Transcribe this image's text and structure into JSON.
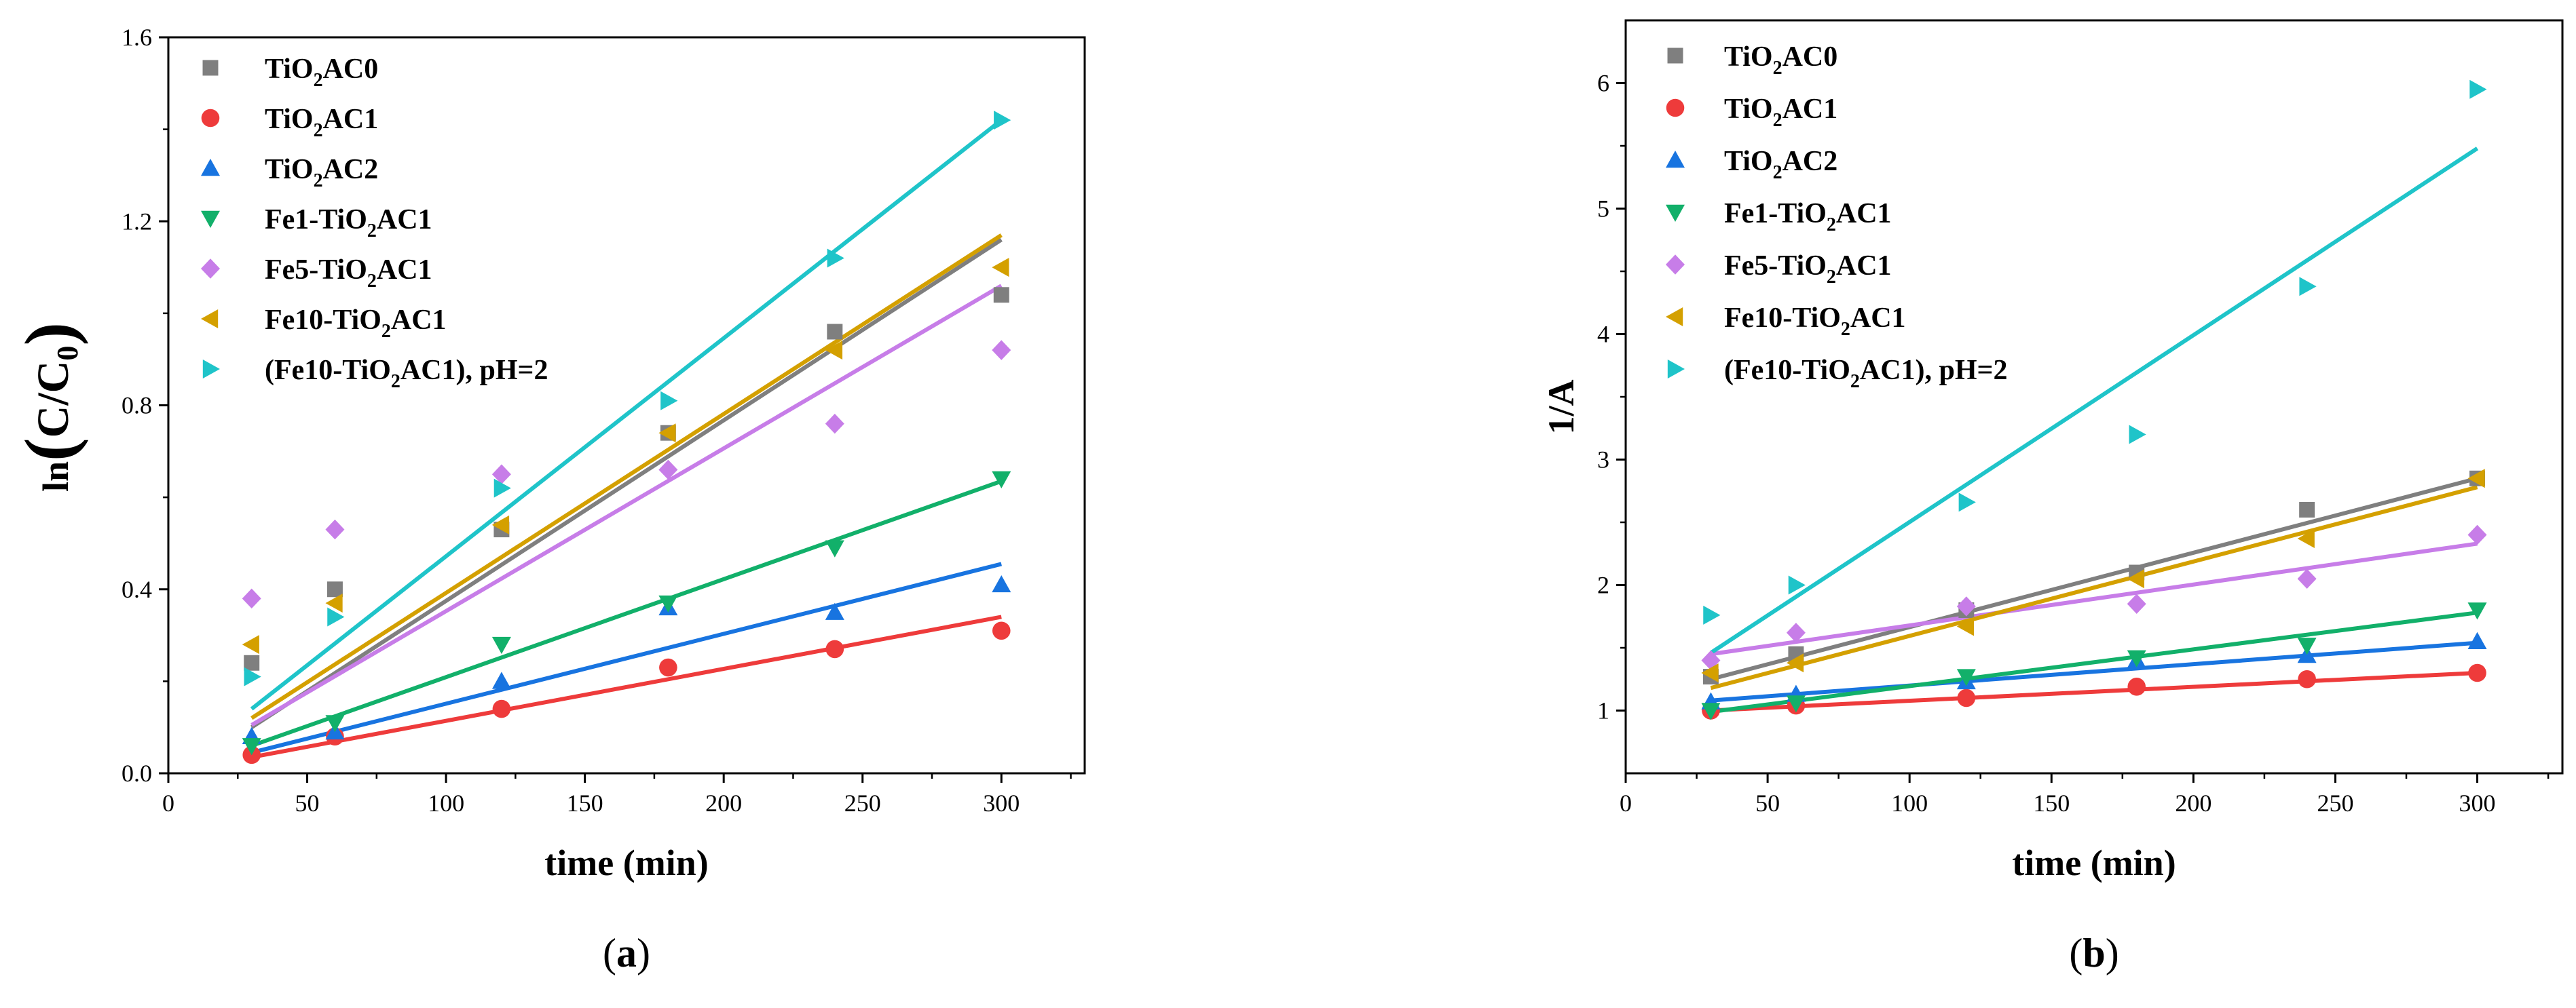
{
  "colors": {
    "TiO2AC0": "#7f7f7f",
    "TiO2AC1": "#ee3b3b",
    "TiO2AC2": "#1874e0",
    "Fe1-TiO2AC1": "#12b06a",
    "Fe5-TiO2AC1": "#c77de8",
    "Fe10-TiO2AC1": "#d4a000",
    "Fe10pH2": "#1fc4c9"
  },
  "chart_data": [
    {
      "id": "a",
      "type": "scatter",
      "panel_label_open": "(",
      "panel_label_letter": "a",
      "panel_label_close": ")",
      "xlabel": "time (min)",
      "ylabel_prefix": "ln",
      "ylabel_inner": "C/C",
      "ylabel_sub": "0",
      "xlim": [
        0,
        330
      ],
      "ylim": [
        0,
        1.6
      ],
      "xticks": [
        0,
        50,
        100,
        150,
        200,
        250,
        300
      ],
      "yticks": [
        0.0,
        0.4,
        0.8,
        1.2,
        1.6
      ],
      "ytick_labels": [
        "0.0",
        "0.4",
        "0.8",
        "1.2",
        "1.6"
      ],
      "x": [
        30,
        60,
        120,
        180,
        240,
        300
      ],
      "series": [
        {
          "key": "TiO2AC0",
          "name": "TiO2AC0",
          "label_parts": [
            "TiO",
            "2",
            "AC0"
          ],
          "marker": "square",
          "values": [
            0.24,
            0.4,
            0.53,
            0.74,
            0.96,
            1.04
          ],
          "fit": [
            0.1,
            1.16
          ]
        },
        {
          "key": "TiO2AC1",
          "name": "TiO2AC1",
          "label_parts": [
            "TiO",
            "2",
            "AC1"
          ],
          "marker": "circle",
          "values": [
            0.04,
            0.08,
            0.14,
            0.23,
            0.27,
            0.31
          ],
          "fit": [
            0.035,
            0.34
          ]
        },
        {
          "key": "TiO2AC2",
          "name": "TiO2AC2",
          "label_parts": [
            "TiO",
            "2",
            "AC2"
          ],
          "marker": "triangle-up",
          "values": [
            0.08,
            0.09,
            0.2,
            0.36,
            0.35,
            0.41
          ],
          "fit": [
            0.045,
            0.455
          ]
        },
        {
          "key": "Fe1-TiO2AC1",
          "name": "Fe1-TiO2AC1",
          "label_parts": [
            "Fe1-TiO",
            "2",
            "AC1"
          ],
          "marker": "triangle-down",
          "values": [
            0.06,
            0.11,
            0.28,
            0.37,
            0.49,
            0.64
          ],
          "fit": [
            0.06,
            0.635
          ]
        },
        {
          "key": "Fe5-TiO2AC1",
          "name": "Fe5-TiO2AC1",
          "label_parts": [
            "Fe5-TiO",
            "2",
            "AC1"
          ],
          "marker": "diamond",
          "values": [
            0.38,
            0.53,
            0.65,
            0.66,
            0.76,
            0.92
          ],
          "fit": [
            0.105,
            1.06
          ]
        },
        {
          "key": "Fe10-TiO2AC1",
          "name": "Fe10-TiO2AC1",
          "label_parts": [
            "Fe10-TiO",
            "2",
            "AC1"
          ],
          "marker": "triangle-left",
          "values": [
            0.28,
            0.37,
            0.54,
            0.74,
            0.92,
            1.1
          ],
          "fit": [
            0.12,
            1.17
          ]
        },
        {
          "key": "Fe10pH2",
          "name": "(Fe10-TiO2AC1), pH=2",
          "label_parts": [
            "(Fe10-TiO",
            "2",
            "AC1), pH=2"
          ],
          "marker": "triangle-right",
          "values": [
            0.21,
            0.34,
            0.62,
            0.81,
            1.12,
            1.42
          ],
          "fit": [
            0.14,
            1.42
          ]
        }
      ]
    },
    {
      "id": "b",
      "type": "scatter",
      "panel_label_open": "(",
      "panel_label_letter": "b",
      "panel_label_close": ")",
      "xlabel": "time (min)",
      "ylabel": "1/A",
      "xlim": [
        0,
        330
      ],
      "ylim": [
        0.5,
        6.5
      ],
      "xticks": [
        0,
        50,
        100,
        150,
        200,
        250,
        300
      ],
      "yticks": [
        1,
        2,
        3,
        4,
        5,
        6
      ],
      "ytick_labels": [
        "1",
        "2",
        "3",
        "4",
        "5",
        "6"
      ],
      "x": [
        30,
        60,
        120,
        180,
        240,
        300
      ],
      "series": [
        {
          "key": "TiO2AC0",
          "name": "TiO2AC0",
          "label_parts": [
            "TiO",
            "2",
            "AC0"
          ],
          "marker": "square",
          "values": [
            1.27,
            1.45,
            1.8,
            2.1,
            2.6,
            2.85
          ],
          "fit": [
            1.25,
            2.85
          ]
        },
        {
          "key": "TiO2AC1",
          "name": "TiO2AC1",
          "label_parts": [
            "TiO",
            "2",
            "AC1"
          ],
          "marker": "circle",
          "values": [
            1.0,
            1.04,
            1.1,
            1.19,
            1.25,
            1.3
          ],
          "fit": [
            1.0,
            1.3
          ]
        },
        {
          "key": "TiO2AC2",
          "name": "TiO2AC2",
          "label_parts": [
            "TiO",
            "2",
            "AC2"
          ],
          "marker": "triangle-up",
          "values": [
            1.07,
            1.13,
            1.23,
            1.4,
            1.44,
            1.55
          ],
          "fit": [
            1.08,
            1.54
          ]
        },
        {
          "key": "Fe1-TiO2AC1",
          "name": "Fe1-TiO2AC1",
          "label_parts": [
            "Fe1-TiO",
            "2",
            "AC1"
          ],
          "marker": "triangle-down",
          "values": [
            1.0,
            1.06,
            1.27,
            1.42,
            1.52,
            1.8
          ],
          "fit": [
            0.99,
            1.78
          ]
        },
        {
          "key": "Fe5-TiO2AC1",
          "name": "Fe5-TiO2AC1",
          "label_parts": [
            "Fe5-TiO",
            "2",
            "AC1"
          ],
          "marker": "diamond",
          "values": [
            1.4,
            1.62,
            1.83,
            1.85,
            2.05,
            2.4
          ],
          "fit": [
            1.45,
            2.33
          ]
        },
        {
          "key": "Fe10-TiO2AC1",
          "name": "Fe10-TiO2AC1",
          "label_parts": [
            "Fe10-TiO",
            "2",
            "AC1"
          ],
          "marker": "triangle-left",
          "values": [
            1.3,
            1.38,
            1.67,
            2.05,
            2.37,
            2.85
          ],
          "fit": [
            1.18,
            2.78
          ]
        },
        {
          "key": "Fe10pH2",
          "name": "(Fe10-TiO2AC1), pH=2",
          "label_parts": [
            "(Fe10-TiO",
            "2",
            "AC1), pH=2"
          ],
          "marker": "triangle-right",
          "values": [
            1.76,
            2.0,
            2.66,
            3.2,
            4.38,
            5.95
          ],
          "fit": [
            1.46,
            5.48
          ]
        }
      ]
    }
  ]
}
